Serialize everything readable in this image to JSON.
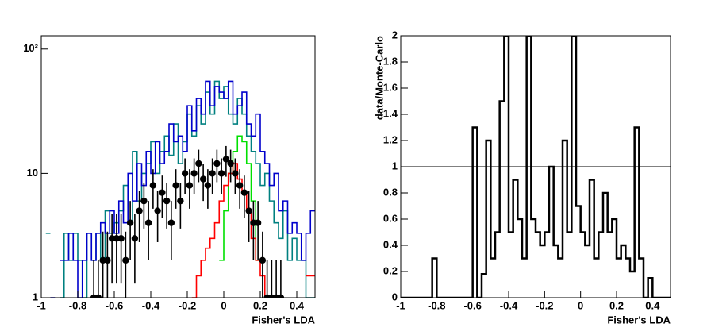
{
  "chart_data": [
    {
      "type": "histogram",
      "log_y": true,
      "x_label": "Fisher's LDA",
      "bins": [
        -1,
        -0.975,
        -0.95,
        -0.925,
        -0.9,
        -0.875,
        -0.85,
        -0.825,
        -0.8,
        -0.775,
        -0.75,
        -0.725,
        -0.7,
        -0.675,
        -0.65,
        -0.625,
        -0.6,
        -0.575,
        -0.55,
        -0.525,
        -0.5,
        -0.475,
        -0.45,
        -0.425,
        -0.4,
        -0.375,
        -0.35,
        -0.325,
        -0.3,
        -0.275,
        -0.25,
        -0.225,
        -0.2,
        -0.175,
        -0.15,
        -0.125,
        -0.1,
        -0.075,
        -0.05,
        -0.025,
        0,
        0.025,
        0.05,
        0.075,
        0.1,
        0.125,
        0.15,
        0.175,
        0.2,
        0.225,
        0.25,
        0.275,
        0.3,
        0.325,
        0.35,
        0.375,
        0.4,
        0.425,
        0.45,
        0.475,
        0.5
      ],
      "xlim": [
        -1,
        0.5
      ],
      "xticks": [
        -1,
        -0.8,
        -0.6,
        -0.4,
        -0.2,
        0,
        0.2,
        0.4
      ],
      "ylim": [
        1,
        128
      ],
      "yticks": [
        1,
        10,
        {
          "value": 100,
          "label": "10²"
        }
      ],
      "series": [
        {
          "color": "#008080",
          "values": [
            null,
            3.3,
            null,
            null,
            1,
            3.3,
            2,
            3.3,
            2,
            1,
            3.3,
            2,
            3.3,
            2,
            5,
            3.3,
            4,
            5,
            8,
            4,
            15,
            6,
            10,
            12,
            18,
            10,
            15,
            20,
            14,
            25,
            12,
            18,
            30,
            20,
            35,
            25,
            45,
            30,
            55,
            40,
            50,
            30,
            25,
            40,
            30,
            20,
            15,
            12,
            8,
            10,
            6,
            4,
            3,
            5,
            2,
            3,
            2,
            2,
            1,
            1
          ]
        },
        {
          "color": "#0000cc",
          "values": [
            null,
            null,
            1,
            null,
            2,
            2,
            3.3,
            2,
            1,
            2,
            3.3,
            2,
            3.3,
            4,
            3.3,
            5,
            3.3,
            6,
            4,
            10,
            6,
            12,
            8,
            15,
            10,
            18,
            12,
            15,
            25,
            18,
            20,
            15,
            35,
            22,
            40,
            30,
            55,
            35,
            50,
            45,
            40,
            55,
            30,
            35,
            45,
            25,
            20,
            30,
            15,
            12,
            8,
            10,
            5,
            6,
            3.3,
            4,
            3.3,
            2,
            3.3,
            5
          ]
        },
        {
          "color": "#00e000",
          "values": [
            null,
            null,
            null,
            null,
            null,
            null,
            null,
            null,
            null,
            null,
            null,
            null,
            null,
            null,
            null,
            null,
            null,
            null,
            null,
            null,
            null,
            null,
            null,
            null,
            null,
            null,
            null,
            null,
            null,
            null,
            null,
            null,
            null,
            null,
            null,
            null,
            null,
            null,
            null,
            2,
            5,
            10,
            15,
            20,
            18,
            12,
            6,
            2,
            null,
            null,
            null,
            null,
            null,
            null,
            null,
            null,
            null,
            null,
            null,
            null
          ]
        },
        {
          "color": "#ff0000",
          "values": [
            null,
            null,
            null,
            null,
            null,
            null,
            null,
            null,
            null,
            null,
            null,
            null,
            null,
            null,
            null,
            null,
            null,
            null,
            null,
            null,
            null,
            null,
            null,
            null,
            null,
            null,
            null,
            null,
            null,
            null,
            null,
            null,
            null,
            1,
            1.5,
            2,
            2.5,
            3,
            4,
            6,
            8,
            10,
            12,
            9,
            7,
            5,
            3,
            2,
            1.5,
            1,
            null,
            null,
            null,
            null,
            null,
            null,
            null,
            null,
            1.5,
            1.5
          ]
        }
      ],
      "points": {
        "color": "#000000",
        "values": [
          null,
          null,
          null,
          null,
          null,
          null,
          null,
          null,
          null,
          null,
          null,
          1,
          1,
          2,
          2,
          3,
          3,
          3,
          2,
          4,
          3,
          5,
          6,
          4,
          8,
          5,
          7,
          6,
          4,
          8,
          6,
          10,
          8,
          10,
          12,
          9,
          8,
          10,
          12,
          10,
          13,
          12,
          10,
          8,
          7,
          5,
          4,
          4,
          2,
          1,
          1,
          1,
          1,
          null,
          null,
          null,
          null,
          null,
          null,
          null
        ],
        "errors": [
          null,
          null,
          null,
          null,
          null,
          null,
          null,
          null,
          null,
          null,
          null,
          1,
          1,
          1.4,
          1.4,
          1.7,
          1.7,
          1.7,
          1.4,
          2,
          1.7,
          2.2,
          2.4,
          2,
          2.8,
          2.2,
          2.6,
          2.4,
          2,
          2.8,
          2.4,
          3.2,
          2.8,
          3.2,
          3.5,
          3,
          2.8,
          3.2,
          3.5,
          3.2,
          3.6,
          3.5,
          3.2,
          2.8,
          2.6,
          2.2,
          2,
          2,
          1.4,
          1,
          1,
          1,
          1,
          null,
          null,
          null,
          null,
          null,
          null,
          null
        ]
      }
    },
    {
      "type": "histogram",
      "log_y": false,
      "x_label": "Fisher's LDA",
      "y_label": "data/Monte-Carlo",
      "bins": [
        -1,
        -0.975,
        -0.95,
        -0.925,
        -0.9,
        -0.875,
        -0.85,
        -0.825,
        -0.8,
        -0.775,
        -0.75,
        -0.725,
        -0.7,
        -0.675,
        -0.65,
        -0.625,
        -0.6,
        -0.575,
        -0.55,
        -0.525,
        -0.5,
        -0.475,
        -0.45,
        -0.425,
        -0.4,
        -0.375,
        -0.35,
        -0.325,
        -0.3,
        -0.275,
        -0.25,
        -0.225,
        -0.2,
        -0.175,
        -0.15,
        -0.125,
        -0.1,
        -0.075,
        -0.05,
        -0.025,
        0,
        0.025,
        0.05,
        0.075,
        0.1,
        0.125,
        0.15,
        0.175,
        0.2,
        0.225,
        0.25,
        0.275,
        0.3,
        0.325,
        0.35,
        0.375,
        0.4,
        0.425,
        0.45,
        0.475,
        0.5
      ],
      "xlim": [
        -1,
        0.5
      ],
      "xticks": [
        -1,
        -0.8,
        -0.6,
        -0.4,
        -0.2,
        0,
        0.2,
        0.4
      ],
      "ylim": [
        0,
        2
      ],
      "yticks": [
        0,
        0.2,
        0.4,
        0.6,
        0.8,
        1,
        1.2,
        1.4,
        1.6,
        1.8,
        2
      ],
      "hline": 1,
      "series": [
        {
          "color": "#000000",
          "values": [
            0,
            0,
            0,
            0,
            0,
            0,
            0,
            0.3,
            0,
            0,
            0,
            0,
            0,
            0,
            0,
            0,
            1.3,
            0,
            0.18,
            1.2,
            0.3,
            0.5,
            1.5,
            2,
            0.5,
            0.9,
            0.6,
            0.3,
            2,
            0.6,
            0.5,
            0.4,
            0.5,
            1,
            0.4,
            0.3,
            1.2,
            0.5,
            2,
            0.7,
            0.5,
            0.4,
            0.9,
            0.3,
            0.5,
            0.8,
            0.5,
            0.6,
            0.3,
            0.4,
            0.3,
            0.2,
            1.3,
            0.3,
            0,
            0.15,
            0,
            0,
            0,
            0
          ]
        }
      ]
    }
  ]
}
